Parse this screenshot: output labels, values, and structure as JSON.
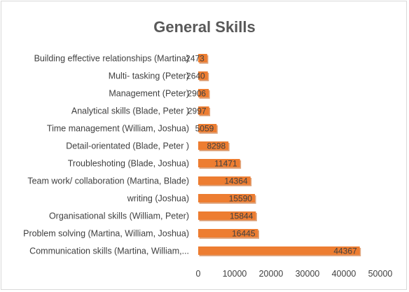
{
  "chart_data": {
    "type": "bar",
    "orientation": "horizontal",
    "title": "General Skills",
    "categories": [
      "Building effective relationships (Martina)",
      "Multi- tasking (Peter)",
      "Management (Peter)",
      "Analytical skills (Blade, Peter )",
      "Time management (William, Joshua)",
      "Detail-orientated (Blade, Peter )",
      "Troubleshoting (Blade, Joshua)",
      "Team work/ collaboration (Martina, Blade)",
      "writing (Joshua)",
      "Organisational skills (William, Peter)",
      "Problem solving (Martina, William, Joshua)",
      "Communication skills (Martina, William,..."
    ],
    "values": [
      2473,
      2640,
      2906,
      2997,
      5059,
      8298,
      11471,
      14364,
      15590,
      15844,
      16445,
      44367
    ],
    "data_labels": [
      "2473",
      "2640",
      "2906",
      "2997",
      "5059",
      "8298",
      "11471",
      "14364",
      "15590",
      "15844",
      "16445",
      "44367"
    ],
    "xlim": [
      0,
      50000
    ],
    "x_ticks": [
      0,
      10000,
      20000,
      30000,
      40000,
      50000
    ],
    "x_tick_labels": [
      "0",
      "10000",
      "20000",
      "30000",
      "40000",
      "50000"
    ],
    "xlabel": "",
    "ylabel": "",
    "grid": false,
    "legend": "none",
    "bar_color": "#ed7d31",
    "bar_shadow_color": "#c55a11"
  }
}
